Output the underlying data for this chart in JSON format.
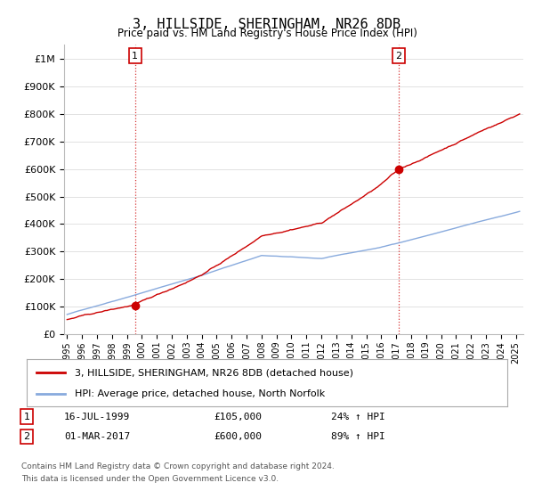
{
  "title": "3, HILLSIDE, SHERINGHAM, NR26 8DB",
  "subtitle": "Price paid vs. HM Land Registry's House Price Index (HPI)",
  "xlim_start": 1994.8,
  "xlim_end": 2025.5,
  "ylim_bottom": 0,
  "ylim_top": 1050000,
  "yticks": [
    0,
    100000,
    200000,
    300000,
    400000,
    500000,
    600000,
    700000,
    800000,
    900000,
    1000000
  ],
  "ytick_labels": [
    "£0",
    "£100K",
    "£200K",
    "£300K",
    "£400K",
    "£500K",
    "£600K",
    "£700K",
    "£800K",
    "£900K",
    "£1M"
  ],
  "xtick_years": [
    1995,
    1996,
    1997,
    1998,
    1999,
    2000,
    2001,
    2002,
    2003,
    2004,
    2005,
    2006,
    2007,
    2008,
    2009,
    2010,
    2011,
    2012,
    2013,
    2014,
    2015,
    2016,
    2017,
    2018,
    2019,
    2020,
    2021,
    2022,
    2023,
    2024,
    2025
  ],
  "sale1_x": 1999.54,
  "sale1_y": 105000,
  "sale1_label": "1",
  "sale2_x": 2017.17,
  "sale2_y": 600000,
  "sale2_label": "2",
  "sale_color": "#cc0000",
  "hpi_color": "#88aadd",
  "legend_label1": "3, HILLSIDE, SHERINGHAM, NR26 8DB (detached house)",
  "legend_label2": "HPI: Average price, detached house, North Norfolk",
  "annotation1_num": "1",
  "annotation1_date": "16-JUL-1999",
  "annotation1_price": "£105,000",
  "annotation1_hpi": "24% ↑ HPI",
  "annotation2_num": "2",
  "annotation2_date": "01-MAR-2017",
  "annotation2_price": "£600,000",
  "annotation2_hpi": "89% ↑ HPI",
  "footnote_line1": "Contains HM Land Registry data © Crown copyright and database right 2024.",
  "footnote_line2": "This data is licensed under the Open Government Licence v3.0.",
  "bg_color": "#ffffff",
  "grid_color": "#dddddd",
  "vline_color": "#cc0000"
}
